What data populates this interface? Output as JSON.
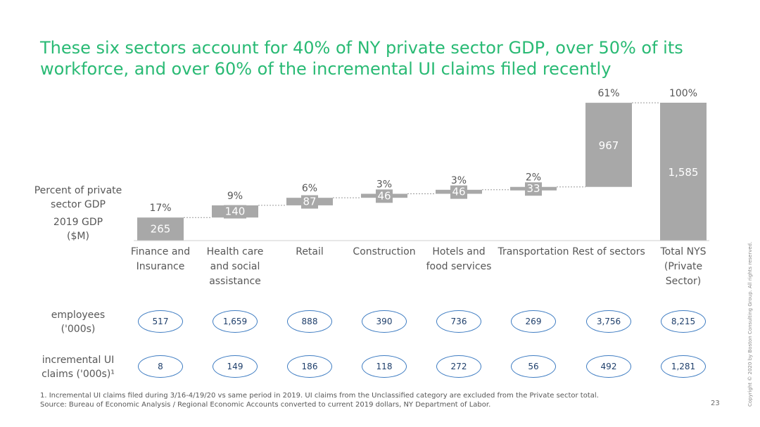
{
  "title": {
    "line1": "These six sectors account for 40% of NY private sector GDP, over 50% of its",
    "line2": "workforce, and over 60% of the incremental UI claims filed recently"
  },
  "row_labels": {
    "percent_gdp": [
      "Percent of private",
      "sector GDP"
    ],
    "gdp": [
      "2019 GDP",
      "($M)"
    ],
    "employees": [
      "employees",
      "('000s)"
    ],
    "ui_claims": [
      "incremental UI",
      "claims ('000s)¹"
    ]
  },
  "chart_data": {
    "type": "bar",
    "subtype": "waterfall",
    "categories": [
      [
        "Finance and",
        "Insurance"
      ],
      [
        "Health care",
        "and social",
        "assistance"
      ],
      [
        "Retail"
      ],
      [
        "Construction"
      ],
      [
        "Hotels and",
        "food services"
      ],
      [
        "Transportation"
      ],
      [
        "Rest of sectors"
      ],
      [
        "Total NYS",
        "(Private",
        "Sector)"
      ]
    ],
    "gdp_values": [
      265,
      140,
      87,
      46,
      46,
      33,
      967,
      1585
    ],
    "gdp_labels": [
      "265",
      "140",
      "87",
      "46",
      "46",
      "33",
      "967",
      "1,585"
    ],
    "percent_labels": [
      "17%",
      "9%",
      "6%",
      "3%",
      "3%",
      "2%",
      "61%",
      "100%"
    ],
    "employees": [
      "517",
      "1,659",
      "888",
      "390",
      "736",
      "269",
      "3,756",
      "8,215"
    ],
    "ui_claims": [
      "8",
      "149",
      "186",
      "118",
      "272",
      "56",
      "492",
      "1,281"
    ],
    "ylim": [
      0,
      1585
    ],
    "colors": {
      "bar": "#a8a8a8",
      "bar_label": "#ffffff",
      "percent_label": "#575757",
      "connector": "#9a9a9a"
    }
  },
  "footnotes": {
    "line1": "1. Incremental UI claims filed during 3/16-4/19/20 vs same period in 2019. UI claims from the Unclassified category are excluded from the Private sector total.",
    "line2": "Source: Bureau of Economic Analysis / Regional Economic Accounts converted to current 2019 dollars, NY Department of Labor."
  },
  "page_number": "23",
  "copyright": "Copyright © 2020 by Boston Consulting Group. All rights reserved.",
  "colors": {
    "title": "#29ba74",
    "oval_border": "#3e7cc2"
  }
}
